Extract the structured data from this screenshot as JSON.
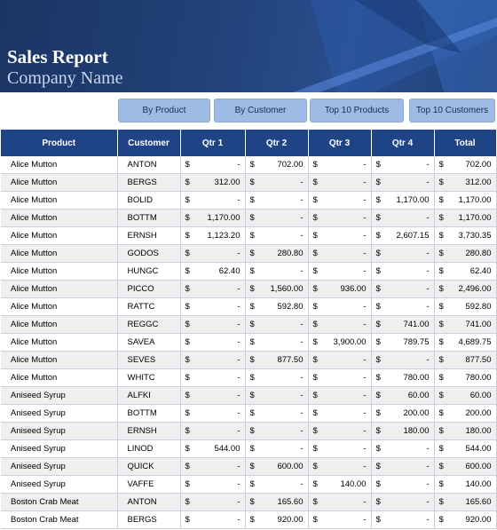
{
  "header": {
    "title": "Sales Report",
    "company": "Company Name"
  },
  "buttons": [
    {
      "label": "By Product"
    },
    {
      "label": "By Customer"
    },
    {
      "label": "Top 10 Products"
    },
    {
      "label": "Top 10 Customers"
    }
  ],
  "table": {
    "columns": [
      "Product",
      "Customer",
      "Qtr 1",
      "Qtr 2",
      "Qtr 3",
      "Qtr 4",
      "Total"
    ],
    "currency": "$",
    "rows": [
      {
        "product": "Alice Mutton",
        "customer": "ANTON",
        "q1": "-",
        "q2": "702.00",
        "q3": "-",
        "q4": "-",
        "total": "702.00"
      },
      {
        "product": "Alice Mutton",
        "customer": "BERGS",
        "q1": "312.00",
        "q2": "-",
        "q3": "-",
        "q4": "-",
        "total": "312.00"
      },
      {
        "product": "Alice Mutton",
        "customer": "BOLID",
        "q1": "-",
        "q2": "-",
        "q3": "-",
        "q4": "1,170.00",
        "total": "1,170.00"
      },
      {
        "product": "Alice Mutton",
        "customer": "BOTTM",
        "q1": "1,170.00",
        "q2": "-",
        "q3": "-",
        "q4": "-",
        "total": "1,170.00"
      },
      {
        "product": "Alice Mutton",
        "customer": "ERNSH",
        "q1": "1,123.20",
        "q2": "-",
        "q3": "-",
        "q4": "2,607.15",
        "total": "3,730.35"
      },
      {
        "product": "Alice Mutton",
        "customer": "GODOS",
        "q1": "-",
        "q2": "280.80",
        "q3": "-",
        "q4": "-",
        "total": "280.80"
      },
      {
        "product": "Alice Mutton",
        "customer": "HUNGC",
        "q1": "62.40",
        "q2": "-",
        "q3": "-",
        "q4": "-",
        "total": "62.40"
      },
      {
        "product": "Alice Mutton",
        "customer": "PICCO",
        "q1": "-",
        "q2": "1,560.00",
        "q3": "936.00",
        "q4": "-",
        "total": "2,496.00"
      },
      {
        "product": "Alice Mutton",
        "customer": "RATTC",
        "q1": "-",
        "q2": "592.80",
        "q3": "-",
        "q4": "-",
        "total": "592.80"
      },
      {
        "product": "Alice Mutton",
        "customer": "REGGC",
        "q1": "-",
        "q2": "-",
        "q3": "-",
        "q4": "741.00",
        "total": "741.00"
      },
      {
        "product": "Alice Mutton",
        "customer": "SAVEA",
        "q1": "-",
        "q2": "-",
        "q3": "3,900.00",
        "q4": "789.75",
        "total": "4,689.75"
      },
      {
        "product": "Alice Mutton",
        "customer": "SEVES",
        "q1": "-",
        "q2": "877.50",
        "q3": "-",
        "q4": "-",
        "total": "877.50"
      },
      {
        "product": "Alice Mutton",
        "customer": "WHITC",
        "q1": "-",
        "q2": "-",
        "q3": "-",
        "q4": "780.00",
        "total": "780.00"
      },
      {
        "product": "Aniseed Syrup",
        "customer": "ALFKI",
        "q1": "-",
        "q2": "-",
        "q3": "-",
        "q4": "60.00",
        "total": "60.00"
      },
      {
        "product": "Aniseed Syrup",
        "customer": "BOTTM",
        "q1": "-",
        "q2": "-",
        "q3": "-",
        "q4": "200.00",
        "total": "200.00"
      },
      {
        "product": "Aniseed Syrup",
        "customer": "ERNSH",
        "q1": "-",
        "q2": "-",
        "q3": "-",
        "q4": "180.00",
        "total": "180.00"
      },
      {
        "product": "Aniseed Syrup",
        "customer": "LINOD",
        "q1": "544.00",
        "q2": "-",
        "q3": "-",
        "q4": "-",
        "total": "544.00"
      },
      {
        "product": "Aniseed Syrup",
        "customer": "QUICK",
        "q1": "-",
        "q2": "600.00",
        "q3": "-",
        "q4": "-",
        "total": "600.00"
      },
      {
        "product": "Aniseed Syrup",
        "customer": "VAFFE",
        "q1": "-",
        "q2": "-",
        "q3": "140.00",
        "q4": "-",
        "total": "140.00"
      },
      {
        "product": "Boston Crab Meat",
        "customer": "ANTON",
        "q1": "-",
        "q2": "165.60",
        "q3": "-",
        "q4": "-",
        "total": "165.60"
      },
      {
        "product": "Boston Crab Meat",
        "customer": "BERGS",
        "q1": "-",
        "q2": "920.00",
        "q3": "-",
        "q4": "-",
        "total": "920.00"
      }
    ]
  },
  "colors": {
    "header_bg": "#1f4485",
    "button_bg": "#9dbbe5",
    "banner_bg": "#22427a"
  }
}
